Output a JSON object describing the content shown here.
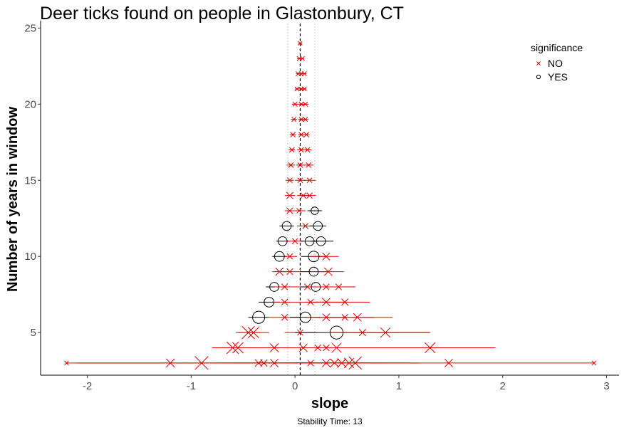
{
  "chart_data": {
    "type": "scatter",
    "title": "Deer ticks found on people in Glastonbury, CT",
    "xlabel": "slope",
    "ylabel": "Number of years in window",
    "caption": "Stability Time: 13",
    "xlim": [
      -2.45,
      3.12
    ],
    "ylim": [
      2.2,
      25.3
    ],
    "xticks": [
      -2,
      -1,
      0,
      1,
      2,
      3
    ],
    "yticks": [
      5,
      10,
      15,
      20,
      25
    ],
    "grid": false,
    "overall_slope": 0.05,
    "bounds": [
      -0.07,
      0.19
    ],
    "legend": {
      "title": "significance",
      "position": "top-right",
      "entries": [
        {
          "label": "NO",
          "color": "#e00000",
          "marker": "x"
        },
        {
          "label": "YES",
          "color": "#000000",
          "marker": "circle"
        }
      ]
    },
    "colors": {
      "no": "#e00000",
      "yes": "#000000",
      "reference": "#000000",
      "bounds": "#bbbbbb"
    },
    "points": [
      {
        "w": 3,
        "x": -2.2,
        "lo": -2.2,
        "hi": -2.2,
        "sig": false,
        "se": 0.12
      },
      {
        "w": 3,
        "x": -1.2,
        "lo": -2.2,
        "hi": -0.2,
        "sig": false,
        "se": 0.5
      },
      {
        "w": 3,
        "x": -0.9,
        "lo": -2.1,
        "hi": 0.3,
        "sig": false,
        "se": 0.9
      },
      {
        "w": 3,
        "x": -0.35,
        "lo": -0.8,
        "hi": 0.1,
        "sig": false,
        "se": 0.4
      },
      {
        "w": 3,
        "x": -0.3,
        "lo": -0.7,
        "hi": 0.1,
        "sig": false,
        "se": 0.35
      },
      {
        "w": 3,
        "x": -0.2,
        "lo": -0.6,
        "hi": 0.2,
        "sig": false,
        "se": 0.45
      },
      {
        "w": 3,
        "x": 0.15,
        "lo": -0.2,
        "hi": 0.5,
        "sig": false,
        "se": 0.3
      },
      {
        "w": 3,
        "x": 0.3,
        "lo": -0.1,
        "hi": 0.7,
        "sig": false,
        "se": 0.45
      },
      {
        "w": 3,
        "x": 0.38,
        "lo": 0.0,
        "hi": 0.8,
        "sig": false,
        "se": 0.5
      },
      {
        "w": 3,
        "x": 0.45,
        "lo": 0.0,
        "hi": 0.9,
        "sig": false,
        "se": 0.55
      },
      {
        "w": 3,
        "x": 0.52,
        "lo": 0.0,
        "hi": 1.1,
        "sig": false,
        "se": 0.6
      },
      {
        "w": 3,
        "x": 0.58,
        "lo": 0.0,
        "hi": 1.2,
        "sig": false,
        "se": 0.85
      },
      {
        "w": 3,
        "x": 1.48,
        "lo": 0.1,
        "hi": 2.88,
        "sig": false,
        "se": 0.45
      },
      {
        "w": 3,
        "x": 2.88,
        "lo": 2.88,
        "hi": 2.88,
        "sig": false,
        "se": 0.12
      },
      {
        "w": 4,
        "x": -0.6,
        "lo": -0.8,
        "hi": -0.4,
        "sig": false,
        "se": 0.8
      },
      {
        "w": 4,
        "x": -0.55,
        "lo": -0.75,
        "hi": -0.35,
        "sig": false,
        "se": 0.7
      },
      {
        "w": 4,
        "x": -0.2,
        "lo": -0.45,
        "hi": 0.05,
        "sig": false,
        "se": 0.5
      },
      {
        "w": 4,
        "x": 0.08,
        "lo": -0.1,
        "hi": 0.26,
        "sig": false,
        "se": 0.45
      },
      {
        "w": 4,
        "x": 0.22,
        "lo": 0.0,
        "hi": 0.44,
        "sig": false,
        "se": 0.3
      },
      {
        "w": 4,
        "x": 0.3,
        "lo": 0.05,
        "hi": 0.55,
        "sig": false,
        "se": 0.3
      },
      {
        "w": 4,
        "x": 0.4,
        "lo": 0.1,
        "hi": 0.7,
        "sig": false,
        "se": 0.6
      },
      {
        "w": 4,
        "x": 1.3,
        "lo": 0.6,
        "hi": 1.93,
        "sig": false,
        "se": 0.65
      },
      {
        "w": 5,
        "x": -0.45,
        "lo": -0.57,
        "hi": -0.33,
        "sig": false,
        "se": 0.85
      },
      {
        "w": 5,
        "x": -0.4,
        "lo": -0.55,
        "hi": -0.25,
        "sig": false,
        "se": 0.7
      },
      {
        "w": 5,
        "x": 0.05,
        "lo": -0.1,
        "hi": 0.2,
        "sig": false,
        "se": 0.25
      },
      {
        "w": 5,
        "x": 0.4,
        "lo": 0.0,
        "hi": 1.3,
        "sig": true,
        "se": 0.6
      },
      {
        "w": 5,
        "x": 0.65,
        "lo": 0.3,
        "hi": 1.0,
        "sig": false,
        "se": 0.35
      },
      {
        "w": 5,
        "x": 0.87,
        "lo": 0.4,
        "hi": 1.3,
        "sig": false,
        "se": 0.6
      },
      {
        "w": 6,
        "x": -0.35,
        "lo": -0.45,
        "hi": -0.25,
        "sig": true,
        "se": 0.55
      },
      {
        "w": 6,
        "x": -0.1,
        "lo": -0.25,
        "hi": 0.05,
        "sig": false,
        "se": 0.3
      },
      {
        "w": 6,
        "x": 0.1,
        "lo": -0.05,
        "hi": 0.25,
        "sig": true,
        "se": 0.45
      },
      {
        "w": 6,
        "x": 0.3,
        "lo": 0.1,
        "hi": 0.5,
        "sig": false,
        "se": 0.4
      },
      {
        "w": 6,
        "x": 0.48,
        "lo": 0.2,
        "hi": 0.76,
        "sig": false,
        "se": 0.3
      },
      {
        "w": 6,
        "x": 0.6,
        "lo": 0.3,
        "hi": 0.94,
        "sig": false,
        "se": 0.45
      },
      {
        "w": 7,
        "x": -0.25,
        "lo": -0.35,
        "hi": -0.15,
        "sig": true,
        "se": 0.4
      },
      {
        "w": 7,
        "x": -0.1,
        "lo": -0.2,
        "hi": 0.0,
        "sig": false,
        "se": 0.3
      },
      {
        "w": 7,
        "x": 0.15,
        "lo": 0.0,
        "hi": 0.3,
        "sig": false,
        "se": 0.3
      },
      {
        "w": 7,
        "x": 0.3,
        "lo": 0.1,
        "hi": 0.5,
        "sig": false,
        "se": 0.45
      },
      {
        "w": 7,
        "x": 0.48,
        "lo": 0.2,
        "hi": 0.72,
        "sig": false,
        "se": 0.35
      },
      {
        "w": 8,
        "x": -0.2,
        "lo": -0.28,
        "hi": -0.12,
        "sig": true,
        "se": 0.35
      },
      {
        "w": 8,
        "x": -0.1,
        "lo": -0.2,
        "hi": 0.0,
        "sig": false,
        "se": 0.3
      },
      {
        "w": 8,
        "x": 0.12,
        "lo": 0.0,
        "hi": 0.24,
        "sig": false,
        "se": 0.3
      },
      {
        "w": 8,
        "x": 0.2,
        "lo": 0.05,
        "hi": 0.35,
        "sig": true,
        "se": 0.35
      },
      {
        "w": 8,
        "x": 0.3,
        "lo": 0.12,
        "hi": 0.48,
        "sig": false,
        "se": 0.3
      },
      {
        "w": 8,
        "x": 0.42,
        "lo": 0.2,
        "hi": 0.58,
        "sig": false,
        "se": 0.3
      },
      {
        "w": 9,
        "x": -0.15,
        "lo": -0.22,
        "hi": -0.08,
        "sig": false,
        "se": 0.45
      },
      {
        "w": 9,
        "x": -0.05,
        "lo": -0.15,
        "hi": 0.05,
        "sig": false,
        "se": 0.3
      },
      {
        "w": 9,
        "x": 0.18,
        "lo": 0.05,
        "hi": 0.31,
        "sig": true,
        "se": 0.35
      },
      {
        "w": 9,
        "x": 0.32,
        "lo": 0.15,
        "hi": 0.47,
        "sig": false,
        "se": 0.45
      },
      {
        "w": 10,
        "x": -0.15,
        "lo": -0.22,
        "hi": -0.08,
        "sig": true,
        "se": 0.4
      },
      {
        "w": 10,
        "x": -0.05,
        "lo": -0.12,
        "hi": 0.02,
        "sig": false,
        "se": 0.25
      },
      {
        "w": 10,
        "x": 0.18,
        "lo": 0.06,
        "hi": 0.3,
        "sig": true,
        "se": 0.45
      },
      {
        "w": 10,
        "x": 0.3,
        "lo": 0.15,
        "hi": 0.42,
        "sig": false,
        "se": 0.4
      },
      {
        "w": 11,
        "x": -0.12,
        "lo": -0.18,
        "hi": -0.06,
        "sig": true,
        "se": 0.35
      },
      {
        "w": 11,
        "x": 0.0,
        "lo": -0.08,
        "hi": 0.08,
        "sig": false,
        "se": 0.25
      },
      {
        "w": 11,
        "x": 0.14,
        "lo": 0.05,
        "hi": 0.23,
        "sig": true,
        "se": 0.35
      },
      {
        "w": 11,
        "x": 0.25,
        "lo": 0.15,
        "hi": 0.37,
        "sig": true,
        "se": 0.35
      },
      {
        "w": 12,
        "x": -0.08,
        "lo": -0.15,
        "hi": -0.01,
        "sig": true,
        "se": 0.35
      },
      {
        "w": 12,
        "x": 0.1,
        "lo": 0.02,
        "hi": 0.18,
        "sig": false,
        "se": 0.25
      },
      {
        "w": 12,
        "x": 0.22,
        "lo": 0.14,
        "hi": 0.3,
        "sig": true,
        "se": 0.35
      },
      {
        "w": 13,
        "x": -0.05,
        "lo": -0.1,
        "hi": 0.0,
        "sig": false,
        "se": 0.3
      },
      {
        "w": 13,
        "x": 0.04,
        "lo": -0.02,
        "hi": 0.1,
        "sig": false,
        "se": 0.2
      },
      {
        "w": 13,
        "x": 0.19,
        "lo": 0.12,
        "hi": 0.26,
        "sig": true,
        "se": 0.25
      },
      {
        "w": 14,
        "x": -0.05,
        "lo": -0.1,
        "hi": 0.0,
        "sig": false,
        "se": 0.35
      },
      {
        "w": 14,
        "x": 0.08,
        "lo": 0.02,
        "hi": 0.14,
        "sig": false,
        "se": 0.25
      },
      {
        "w": 14,
        "x": 0.14,
        "lo": 0.08,
        "hi": 0.2,
        "sig": false,
        "se": 0.25
      },
      {
        "w": 15,
        "x": -0.05,
        "lo": -0.09,
        "hi": -0.01,
        "sig": false,
        "se": 0.2
      },
      {
        "w": 15,
        "x": 0.05,
        "lo": 0.0,
        "hi": 0.1,
        "sig": false,
        "se": 0.2
      },
      {
        "w": 15,
        "x": 0.14,
        "lo": 0.08,
        "hi": 0.2,
        "sig": false,
        "se": 0.2
      },
      {
        "w": 16,
        "x": -0.04,
        "lo": -0.08,
        "hi": 0.0,
        "sig": false,
        "se": 0.2
      },
      {
        "w": 16,
        "x": 0.05,
        "lo": 0.01,
        "hi": 0.09,
        "sig": false,
        "se": 0.2
      },
      {
        "w": 16,
        "x": 0.13,
        "lo": 0.08,
        "hi": 0.18,
        "sig": false,
        "se": 0.2
      },
      {
        "w": 17,
        "x": -0.03,
        "lo": -0.06,
        "hi": 0.0,
        "sig": false,
        "se": 0.2
      },
      {
        "w": 17,
        "x": 0.06,
        "lo": 0.02,
        "hi": 0.1,
        "sig": false,
        "se": 0.2
      },
      {
        "w": 17,
        "x": 0.12,
        "lo": 0.08,
        "hi": 0.16,
        "sig": false,
        "se": 0.2
      },
      {
        "w": 18,
        "x": -0.02,
        "lo": -0.05,
        "hi": 0.01,
        "sig": false,
        "se": 0.2
      },
      {
        "w": 18,
        "x": 0.06,
        "lo": 0.03,
        "hi": 0.09,
        "sig": false,
        "se": 0.2
      },
      {
        "w": 18,
        "x": 0.11,
        "lo": 0.08,
        "hi": 0.14,
        "sig": false,
        "se": 0.2
      },
      {
        "w": 19,
        "x": -0.01,
        "lo": -0.04,
        "hi": 0.02,
        "sig": false,
        "se": 0.15
      },
      {
        "w": 19,
        "x": 0.06,
        "lo": 0.03,
        "hi": 0.09,
        "sig": false,
        "se": 0.15
      },
      {
        "w": 19,
        "x": 0.1,
        "lo": 0.07,
        "hi": 0.13,
        "sig": false,
        "se": 0.15
      },
      {
        "w": 20,
        "x": 0.0,
        "lo": -0.03,
        "hi": 0.03,
        "sig": false,
        "se": 0.15
      },
      {
        "w": 20,
        "x": 0.06,
        "lo": 0.03,
        "hi": 0.09,
        "sig": false,
        "se": 0.15
      },
      {
        "w": 20,
        "x": 0.1,
        "lo": 0.07,
        "hi": 0.13,
        "sig": false,
        "se": 0.15
      },
      {
        "w": 21,
        "x": 0.02,
        "lo": 0.0,
        "hi": 0.04,
        "sig": false,
        "se": 0.15
      },
      {
        "w": 21,
        "x": 0.06,
        "lo": 0.04,
        "hi": 0.08,
        "sig": false,
        "se": 0.15
      },
      {
        "w": 21,
        "x": 0.09,
        "lo": 0.07,
        "hi": 0.11,
        "sig": false,
        "se": 0.15
      },
      {
        "w": 22,
        "x": 0.03,
        "lo": 0.01,
        "hi": 0.05,
        "sig": false,
        "se": 0.15
      },
      {
        "w": 22,
        "x": 0.06,
        "lo": 0.04,
        "hi": 0.08,
        "sig": false,
        "se": 0.15
      },
      {
        "w": 22,
        "x": 0.09,
        "lo": 0.07,
        "hi": 0.11,
        "sig": false,
        "se": 0.15
      },
      {
        "w": 23,
        "x": 0.04,
        "lo": 0.02,
        "hi": 0.06,
        "sig": false,
        "se": 0.15
      },
      {
        "w": 23,
        "x": 0.07,
        "lo": 0.05,
        "hi": 0.09,
        "sig": false,
        "se": 0.15
      },
      {
        "w": 24,
        "x": 0.05,
        "lo": 0.03,
        "hi": 0.07,
        "sig": false,
        "se": 0.12
      }
    ]
  }
}
